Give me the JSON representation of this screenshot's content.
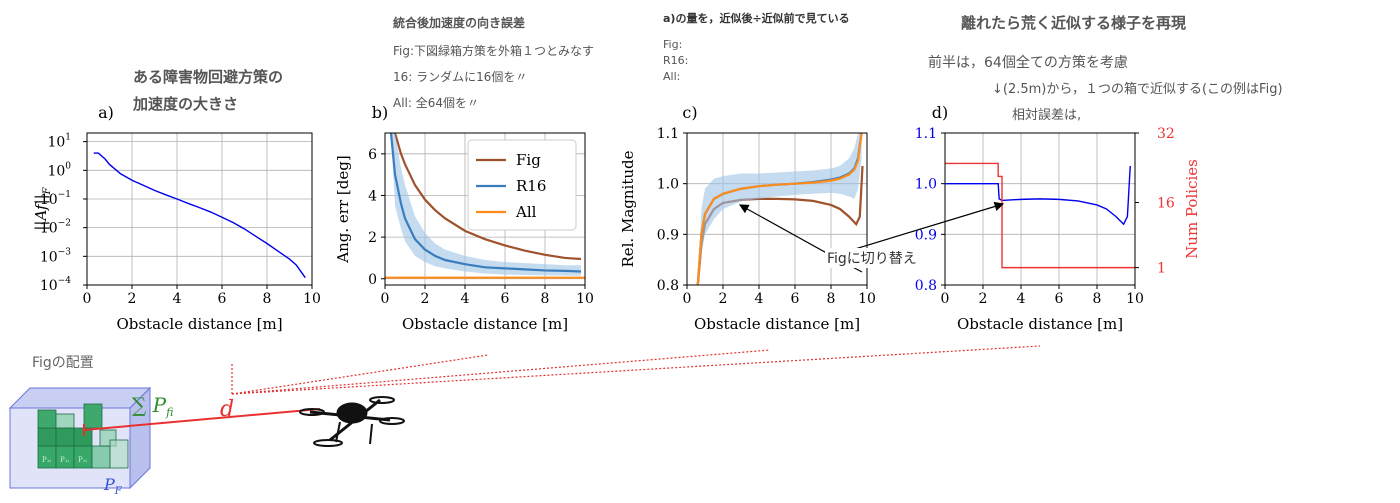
{
  "notes": {
    "title_a": "ある障害物回避方策の",
    "title_a2": "加速度の大きさ",
    "title_b": "統合後加速度の向き誤差",
    "note_b1": "Fig:下図緑箱方策を外箱１つとみなす",
    "note_b2": "16: ランダムに16個を〃",
    "note_b3": "All: 全64個を〃",
    "title_c": "a)の量を，近似後÷近似前で見ている",
    "note_c1": "Fig:",
    "note_c2": "R16:",
    "note_c3": "All:",
    "title_d": "離れたら荒く近似する様子を再現",
    "note_d1": "前半は，64個全ての方策を考慮",
    "note_d2": "↓(2.5m)から，１つの箱で近似する(この例はFig)",
    "note_d3": "相対誤差は,",
    "fig_switch": "Figに切り替え",
    "fig_layout": "Figの配置",
    "sum_label": "∑ P",
    "sum_sup": "i",
    "sum_sub": "f",
    "d_label": "d",
    "pf_label": "P",
    "pf_sub": "F",
    "cube_text": "P₁ᵢ",
    "colors": {
      "fig": "#a0522d",
      "r16": "#3a7dbf",
      "all": "#ff8c1a",
      "blue": "#0000ee",
      "red": "#ee3333",
      "green": "#2e8b57",
      "annot": "#555555"
    }
  },
  "chart_data": [
    {
      "panel": "a)",
      "type": "line",
      "xlabel": "Obstacle distance [m]",
      "ylabel": "||Af||F",
      "yscale": "log",
      "xlim": [
        0,
        10
      ],
      "ylim": [
        0.0001,
        20
      ],
      "xticks": [
        "0",
        "2",
        "4",
        "6",
        "8",
        "10"
      ],
      "yticks": [
        "10^1",
        "10^0",
        "10^-1",
        "10^-2",
        "10^-3",
        "10^-4"
      ],
      "grid": true,
      "series": [
        {
          "x": [
            0.3,
            0.5,
            0.8,
            1,
            1.5,
            2,
            2.5,
            3,
            3.5,
            4,
            4.5,
            5,
            5.5,
            6,
            6.5,
            7,
            7.5,
            8,
            8.5,
            9,
            9.3,
            9.5,
            9.7
          ],
          "y": [
            4,
            4,
            2.5,
            1.6,
            0.75,
            0.45,
            0.3,
            0.2,
            0.14,
            0.1,
            0.07,
            0.05,
            0.035,
            0.023,
            0.015,
            0.009,
            0.005,
            0.0028,
            0.0015,
            0.0008,
            0.0005,
            0.0003,
            0.00018
          ]
        }
      ]
    },
    {
      "panel": "b)",
      "type": "line",
      "xlabel": "Obstacle distance [m]",
      "ylabel": "Ang. err [deg]",
      "xlim": [
        0,
        10
      ],
      "ylim": [
        -0.3,
        7
      ],
      "xticks": [
        "0",
        "2",
        "4",
        "6",
        "8",
        "10"
      ],
      "yticks": [
        "0",
        "2",
        "4",
        "6"
      ],
      "grid": true,
      "legend_position": "top-right",
      "series": [
        {
          "name": "Fig",
          "x": [
            0.5,
            0.8,
            1,
            1.5,
            2,
            2.5,
            3,
            4,
            5,
            6,
            7,
            8,
            9,
            9.8
          ],
          "y": [
            7,
            6,
            5.5,
            4.5,
            3.8,
            3.3,
            2.9,
            2.3,
            1.9,
            1.6,
            1.35,
            1.15,
            1,
            0.95
          ]
        },
        {
          "name": "R16",
          "x": [
            0.3,
            0.5,
            0.8,
            1,
            1.5,
            2,
            2.5,
            3,
            4,
            5,
            6,
            7,
            8,
            9,
            9.8
          ],
          "y": [
            7,
            5,
            3.6,
            2.9,
            1.9,
            1.4,
            1.1,
            0.9,
            0.7,
            0.55,
            0.5,
            0.45,
            0.4,
            0.38,
            0.35
          ],
          "lower": [
            7,
            3.5,
            2.4,
            1.8,
            1.1,
            0.8,
            0.6,
            0.5,
            0.35,
            0.25,
            0.2,
            0.18,
            0.16,
            0.15,
            0.15
          ],
          "upper": [
            7,
            7,
            5.3,
            4.5,
            3,
            2.2,
            1.7,
            1.4,
            1.1,
            0.9,
            0.8,
            0.75,
            0.7,
            0.65,
            0.65
          ]
        },
        {
          "name": "All",
          "x": [
            0,
            10
          ],
          "y": [
            0.05,
            0.05
          ]
        }
      ]
    },
    {
      "panel": "c)",
      "type": "line",
      "xlabel": "Obstacle distance [m]",
      "ylabel": "Rel. Magnitude",
      "xlim": [
        0,
        10
      ],
      "ylim": [
        0.8,
        1.1
      ],
      "xticks": [
        "0",
        "2",
        "4",
        "6",
        "8",
        "10"
      ],
      "yticks": [
        "0.8",
        "0.9",
        "1.0",
        "1.1"
      ],
      "grid": true,
      "series": [
        {
          "name": "Fig",
          "x": [
            0.6,
            0.8,
            1,
            1.5,
            2,
            3,
            4,
            5,
            6,
            7,
            8,
            8.5,
            9,
            9.4,
            9.6,
            9.75
          ],
          "y": [
            0.8,
            0.88,
            0.92,
            0.95,
            0.962,
            0.968,
            0.97,
            0.97,
            0.969,
            0.966,
            0.958,
            0.95,
            0.935,
            0.92,
            0.935,
            1.035
          ]
        },
        {
          "name": "R16",
          "x": [
            0.6,
            0.8,
            1,
            1.5,
            2,
            3,
            4,
            5,
            6,
            7,
            8,
            8.5,
            9,
            9.3,
            9.5,
            9.7
          ],
          "y": [
            0.8,
            0.9,
            0.94,
            0.97,
            0.98,
            0.99,
            0.995,
            0.998,
            1.0,
            1.003,
            1.008,
            1.012,
            1.02,
            1.03,
            1.05,
            1.1
          ],
          "lower": [
            0.8,
            0.86,
            0.9,
            0.93,
            0.95,
            0.965,
            0.97,
            0.975,
            0.978,
            0.98,
            0.982,
            0.98,
            0.975,
            0.97,
            0.99,
            1.05
          ],
          "upper": [
            0.8,
            0.95,
            0.99,
            1.01,
            1.015,
            1.02,
            1.02,
            1.022,
            1.024,
            1.026,
            1.03,
            1.035,
            1.05,
            1.07,
            1.1,
            1.1
          ]
        },
        {
          "name": "All",
          "x": [
            0.6,
            0.8,
            1,
            1.5,
            2,
            3,
            4,
            5,
            6,
            7,
            8,
            8.5,
            9,
            9.3,
            9.5,
            9.7
          ],
          "y": [
            0.8,
            0.9,
            0.94,
            0.97,
            0.98,
            0.99,
            0.995,
            0.998,
            1.0,
            1.002,
            1.006,
            1.01,
            1.018,
            1.028,
            1.045,
            1.1
          ]
        }
      ]
    },
    {
      "panel": "d)",
      "type": "line",
      "xlabel": "Obstacle distance [m]",
      "ylabel": "",
      "ylabel_right": "Num Policies",
      "xlim": [
        0,
        10
      ],
      "ylim": [
        0.8,
        1.1
      ],
      "ylim_right": [
        -3,
        32
      ],
      "xticks": [
        "0",
        "2",
        "4",
        "6",
        "8",
        "10"
      ],
      "yticks": [
        "0.8",
        "0.9",
        "1.0",
        "1.1"
      ],
      "yticks_right": [
        "1",
        "16",
        "32"
      ],
      "grid": true,
      "series": [
        {
          "x": [
            0,
            2.8,
            2.85,
            3,
            4,
            5,
            6,
            7,
            8,
            8.5,
            9,
            9.4,
            9.6,
            9.75
          ],
          "y": [
            1.0,
            1.0,
            0.97,
            0.967,
            0.969,
            0.97,
            0.969,
            0.966,
            0.958,
            0.95,
            0.935,
            0.92,
            0.935,
            1.035
          ]
        },
        {
          "axis": "right",
          "x": [
            0,
            2.8,
            2.8,
            3,
            3,
            10
          ],
          "y": [
            25,
            25,
            22,
            22,
            1,
            1
          ]
        }
      ]
    }
  ]
}
